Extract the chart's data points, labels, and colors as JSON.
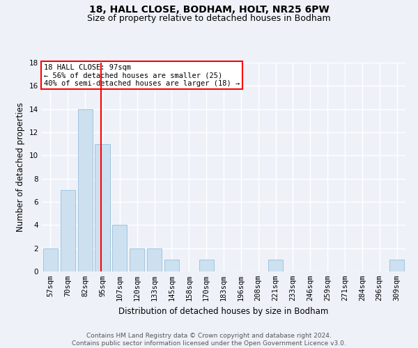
{
  "title1": "18, HALL CLOSE, BODHAM, HOLT, NR25 6PW",
  "title2": "Size of property relative to detached houses in Bodham",
  "xlabel": "Distribution of detached houses by size in Bodham",
  "ylabel": "Number of detached properties",
  "categories": [
    "57sqm",
    "70sqm",
    "82sqm",
    "95sqm",
    "107sqm",
    "120sqm",
    "133sqm",
    "145sqm",
    "158sqm",
    "170sqm",
    "183sqm",
    "196sqm",
    "208sqm",
    "221sqm",
    "233sqm",
    "246sqm",
    "259sqm",
    "271sqm",
    "284sqm",
    "296sqm",
    "309sqm"
  ],
  "values": [
    2,
    7,
    14,
    11,
    4,
    2,
    2,
    1,
    0,
    1,
    0,
    0,
    0,
    1,
    0,
    0,
    0,
    0,
    0,
    0,
    1
  ],
  "bar_color": "#cce0f0",
  "bar_edge_color": "#a0c4e0",
  "red_line_x": 2.93,
  "annotation_text": "18 HALL CLOSE: 97sqm\n← 56% of detached houses are smaller (25)\n40% of semi-detached houses are larger (18) →",
  "annotation_box_color": "white",
  "annotation_box_edge": "red",
  "ylim": [
    0,
    18
  ],
  "yticks": [
    0,
    2,
    4,
    6,
    8,
    10,
    12,
    14,
    16,
    18
  ],
  "footer": "Contains HM Land Registry data © Crown copyright and database right 2024.\nContains public sector information licensed under the Open Government Licence v3.0.",
  "background_color": "#eef2f8",
  "grid_color": "white",
  "title1_fontsize": 10,
  "title2_fontsize": 9,
  "ylabel_fontsize": 8.5,
  "xlabel_fontsize": 8.5,
  "tick_fontsize": 7.5,
  "footer_fontsize": 6.5,
  "ann_fontsize": 7.5
}
